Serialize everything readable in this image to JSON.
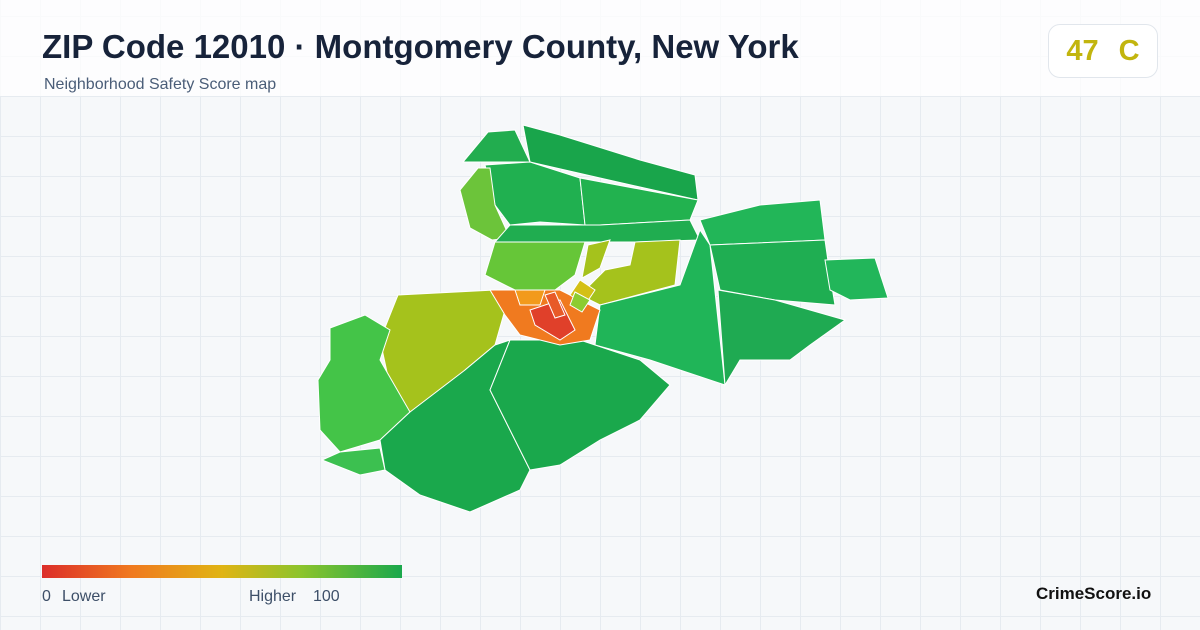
{
  "header": {
    "title": "ZIP Code 12010 · Montgomery County, New York",
    "subtitle": "Neighborhood Safety Score map"
  },
  "score": {
    "value": 47,
    "grade": "C"
  },
  "legend": {
    "min": 0,
    "min_label": "Lower",
    "max_label": "Higher",
    "max": 100
  },
  "brand": "CrimeScore.io"
}
